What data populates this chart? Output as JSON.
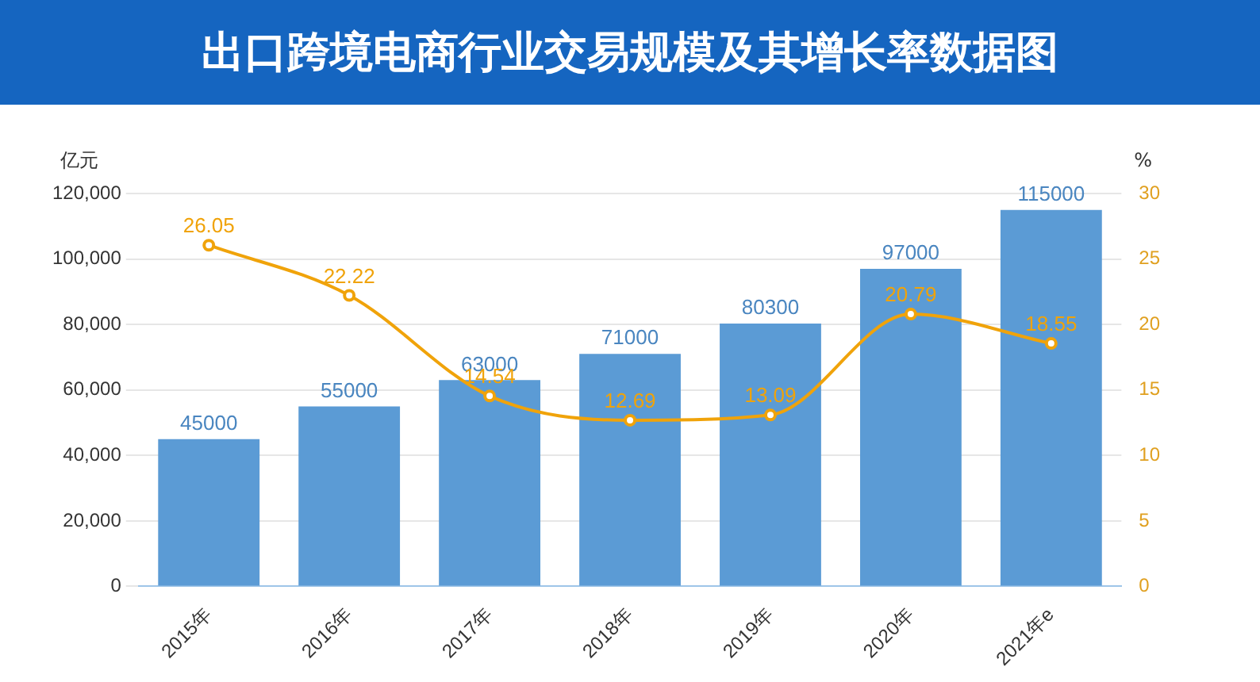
{
  "chart_data": {
    "type": "bar",
    "title": "出口跨境电商行业交易规模及其增长率数据图",
    "ylabel": "亿元",
    "y2label": "%",
    "categories": [
      "2015年",
      "2016年",
      "2017年",
      "2018年",
      "2019年",
      "2020年",
      "2021年e"
    ],
    "series": [
      {
        "color": "#5b9bd5",
        "values": [
          45000,
          55000,
          63000,
          71000,
          80300,
          97000,
          115000
        ]
      },
      {
        "type": "line",
        "axis": "y2",
        "color": "#f0a30a",
        "values": [
          26.05,
          22.22,
          14.54,
          12.69,
          13.09,
          20.79,
          18.55
        ]
      }
    ],
    "ylim": [
      0,
      120000
    ],
    "yticks": [
      0,
      {
        "value": 20000,
        "label": "20,000"
      },
      {
        "value": 40000,
        "label": "40,000"
      },
      {
        "value": 60000,
        "label": "60,000"
      },
      {
        "value": 80000,
        "label": "80,000"
      },
      {
        "value": 100000,
        "label": "100,000"
      },
      {
        "value": 120000,
        "label": "120,000"
      }
    ],
    "y2lim": [
      0,
      30
    ],
    "y2ticks": [
      0,
      5,
      10,
      15,
      20,
      25,
      30
    ],
    "grid": "y",
    "marker": "circle",
    "data_labels": true,
    "legend": false
  }
}
